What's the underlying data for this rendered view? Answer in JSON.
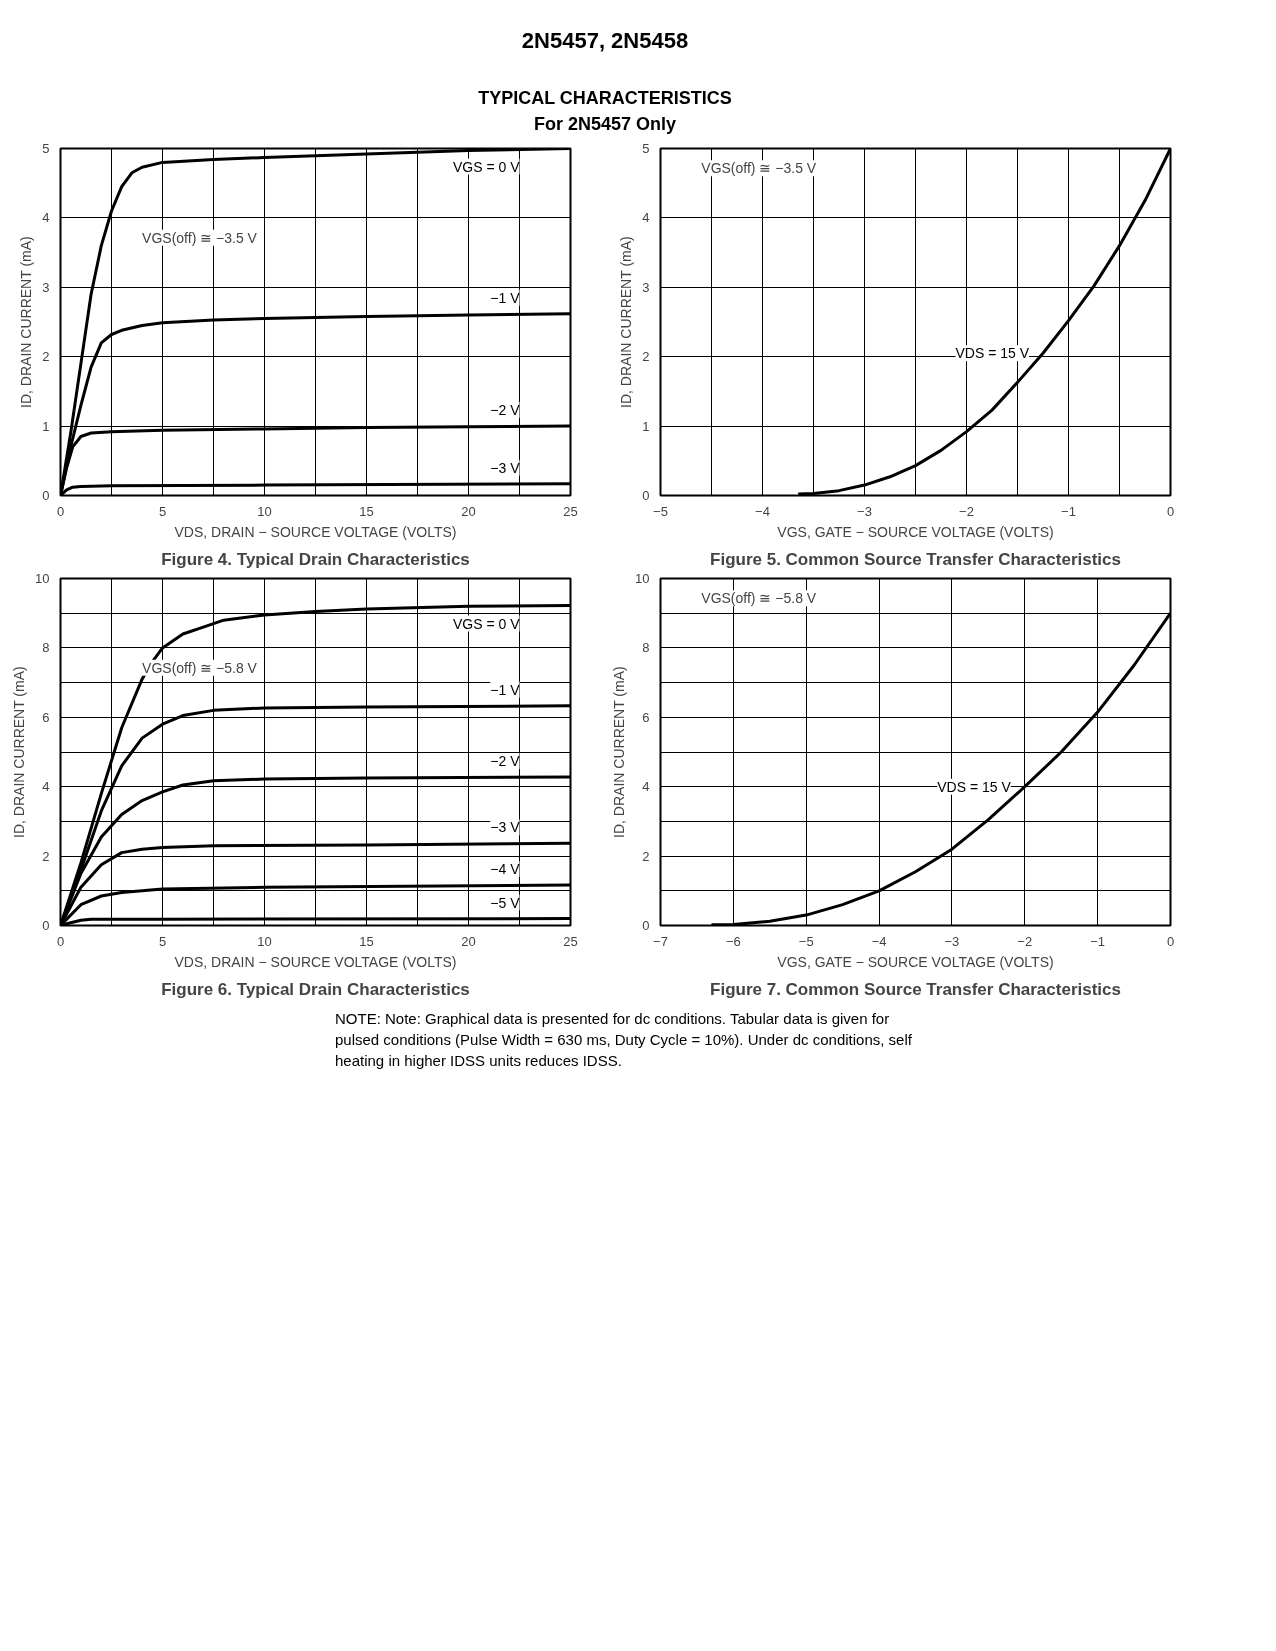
{
  "chart_data": [
    {
      "type": "line",
      "title": "Figure 4. Typical Drain Characteristics",
      "xlabel": "VDS, DRAIN − SOURCE VOLTAGE (VOLTS)",
      "ylabel": "ID, DRAIN CURRENT (mA)",
      "annotations": [
        "VGS(off) ≅ −3.5 V",
        "2N5457, 2N5458",
        "TYPICAL CHARACTERISTICS",
        "For 2N5457 Only"
      ],
      "xlim": [
        0,
        25
      ],
      "ylim": [
        0,
        5
      ],
      "xticks": [
        0,
        {
          "value": 2.5,
          "label": null
        },
        5,
        {
          "value": 7.5,
          "label": null
        },
        10,
        {
          "value": 12.5,
          "label": null
        },
        15,
        {
          "value": 17.5,
          "label": null
        },
        20,
        {
          "value": 22.5,
          "label": null
        },
        25
      ],
      "yticks": [
        0,
        1,
        2,
        3,
        4,
        5
      ],
      "grid": true,
      "series": [
        {
          "name": "VGS = 0 V",
          "color": "#000000",
          "x": [
            0,
            0.5,
            1,
            1.5,
            2,
            2.5,
            3,
            3.5,
            4,
            5,
            7.5,
            10,
            15,
            20,
            25
          ],
          "values": [
            0,
            0.9,
            1.9,
            2.9,
            3.6,
            4.1,
            4.45,
            4.65,
            4.73,
            4.8,
            4.84,
            4.87,
            4.92,
            4.97,
            5.0
          ]
        },
        {
          "name": "−1 V",
          "color": "#000000",
          "x": [
            0,
            0.5,
            1,
            1.5,
            2,
            2.5,
            3,
            4,
            5,
            7.5,
            10,
            15,
            20,
            25
          ],
          "values": [
            0,
            0.7,
            1.3,
            1.85,
            2.2,
            2.32,
            2.38,
            2.45,
            2.49,
            2.53,
            2.55,
            2.58,
            2.6,
            2.62
          ]
        },
        {
          "name": "−2 V",
          "color": "#000000",
          "x": [
            0,
            0.3,
            0.6,
            1,
            1.5,
            2.5,
            5,
            10,
            15,
            20,
            25
          ],
          "values": [
            0,
            0.4,
            0.7,
            0.85,
            0.9,
            0.92,
            0.94,
            0.96,
            0.98,
            0.99,
            1.0
          ]
        },
        {
          "name": "−3 V",
          "color": "#000000",
          "x": [
            0,
            0.3,
            0.6,
            1,
            2.5,
            10,
            25
          ],
          "values": [
            0,
            0.08,
            0.12,
            0.13,
            0.14,
            0.15,
            0.17
          ]
        }
      ]
    },
    {
      "type": "line",
      "title": "Figure 5. Common Source Transfer Characteristics",
      "xlabel": "VGS, GATE − SOURCE VOLTAGE (VOLTS)",
      "ylabel": "ID, DRAIN CURRENT (mA)",
      "annotations": [
        "VGS(off) ≅ −3.5 V"
      ],
      "xlim": [
        -5,
        0
      ],
      "ylim": [
        0,
        5
      ],
      "xticks": [
        -5,
        {
          "value": -4.5,
          "label": null
        },
        -4,
        {
          "value": -3.5,
          "label": null
        },
        -3,
        {
          "value": -2.5,
          "label": null
        },
        -2,
        {
          "value": -1.5,
          "label": null
        },
        -1,
        {
          "value": -0.5,
          "label": null
        },
        0
      ],
      "yticks": [
        0,
        1,
        2,
        3,
        4,
        5
      ],
      "grid": true,
      "series": [
        {
          "name": "VDS = 15 V",
          "color": "#000000",
          "x": [
            -3.65,
            -3.5,
            -3.25,
            -3,
            -2.75,
            -2.5,
            -2.25,
            -2,
            -1.75,
            -1.5,
            -1.25,
            -1,
            -0.75,
            -0.5,
            -0.25,
            0
          ],
          "values": [
            0.02,
            0.03,
            0.07,
            0.15,
            0.27,
            0.43,
            0.65,
            0.92,
            1.23,
            1.63,
            2.05,
            2.52,
            3.02,
            3.6,
            4.25,
            5.0
          ]
        }
      ]
    },
    {
      "type": "line",
      "title": "Figure 6. Typical Drain Characteristics",
      "xlabel": "VDS, DRAIN − SOURCE VOLTAGE (VOLTS)",
      "ylabel": "ID, DRAIN CURRENT (mA)",
      "annotations": [
        "VGS(off) ≅ −5.8 V"
      ],
      "xlim": [
        0,
        25
      ],
      "ylim": [
        0,
        10
      ],
      "xticks": [
        0,
        {
          "value": 2.5,
          "label": null
        },
        5,
        {
          "value": 7.5,
          "label": null
        },
        10,
        {
          "value": 12.5,
          "label": null
        },
        15,
        {
          "value": 17.5,
          "label": null
        },
        20,
        {
          "value": 22.5,
          "label": null
        },
        25
      ],
      "yticks": [
        0,
        {
          "value": 1,
          "label": null
        },
        2,
        {
          "value": 3,
          "label": null
        },
        4,
        {
          "value": 5,
          "label": null
        },
        6,
        {
          "value": 7,
          "label": null
        },
        8,
        {
          "value": 9,
          "label": null
        },
        10
      ],
      "grid": true,
      "series": [
        {
          "name": "VGS = 0 V",
          "color": "#000000",
          "x": [
            0,
            1,
            2,
            3,
            4,
            4.5,
            5,
            6,
            7,
            8,
            10,
            12.5,
            15,
            20,
            25
          ],
          "values": [
            0,
            1.8,
            3.8,
            5.7,
            7.1,
            7.6,
            8.0,
            8.4,
            8.6,
            8.8,
            8.95,
            9.05,
            9.12,
            9.2,
            9.22
          ]
        },
        {
          "name": "−1 V",
          "color": "#000000",
          "x": [
            0,
            1,
            2,
            3,
            4,
            5,
            6,
            7.5,
            10,
            15,
            25
          ],
          "values": [
            0,
            1.6,
            3.3,
            4.6,
            5.4,
            5.8,
            6.05,
            6.2,
            6.27,
            6.3,
            6.33
          ]
        },
        {
          "name": "−2 V",
          "color": "#000000",
          "x": [
            0,
            1,
            2,
            3,
            4,
            5,
            6,
            7.5,
            10,
            15,
            25
          ],
          "values": [
            0,
            1.5,
            2.55,
            3.2,
            3.6,
            3.85,
            4.05,
            4.17,
            4.22,
            4.25,
            4.28
          ]
        },
        {
          "name": "−3 V",
          "color": "#000000",
          "x": [
            0,
            1,
            2,
            3,
            4,
            5,
            7.5,
            15,
            25
          ],
          "values": [
            0,
            1.1,
            1.75,
            2.1,
            2.2,
            2.25,
            2.3,
            2.32,
            2.37
          ]
        },
        {
          "name": "−4 V",
          "color": "#000000",
          "x": [
            0,
            1,
            2,
            3,
            5,
            10,
            25
          ],
          "values": [
            0,
            0.6,
            0.85,
            0.95,
            1.05,
            1.1,
            1.17
          ]
        },
        {
          "name": "−5 V",
          "color": "#000000",
          "x": [
            0,
            0.5,
            1,
            1.5,
            5,
            25
          ],
          "values": [
            0,
            0.08,
            0.15,
            0.18,
            0.18,
            0.2
          ]
        }
      ]
    },
    {
      "type": "line",
      "title": "Figure 7. Common Source Transfer Characteristics",
      "xlabel": "VGS, GATE − SOURCE VOLTAGE (VOLTS)",
      "ylabel": "ID, DRAIN CURRENT (mA)",
      "annotations": [
        "VGS(off) ≅ −5.8 V",
        "NOTE: Note: Graphical data is presented for dc conditions. Tabular data is given for pulsed conditions (Pulse Width = 630 ms, Duty Cycle = 10%). Under dc conditions, self heating in higher IDSS units reduces IDSS."
      ],
      "xlim": [
        -7,
        0
      ],
      "ylim": [
        0,
        10
      ],
      "xticks": [
        -7,
        -6,
        -5,
        -4,
        -3,
        -2,
        -1,
        0
      ],
      "yticks": [
        0,
        {
          "value": 1,
          "label": null
        },
        2,
        {
          "value": 3,
          "label": null
        },
        4,
        {
          "value": 5,
          "label": null
        },
        6,
        {
          "value": 7,
          "label": null
        },
        8,
        {
          "value": 9,
          "label": null
        },
        10
      ],
      "grid": true,
      "series": [
        {
          "name": "VDS = 15 V",
          "color": "#000000",
          "x": [
            -6.3,
            -6,
            -5.5,
            -5,
            -4.5,
            -4,
            -3.5,
            -3,
            -2.5,
            -2,
            -1.5,
            -1,
            -0.5,
            0
          ],
          "values": [
            0.02,
            0.03,
            0.12,
            0.3,
            0.6,
            1.0,
            1.55,
            2.2,
            3.05,
            4.0,
            5.0,
            6.15,
            7.5,
            9.0
          ]
        }
      ]
    }
  ]
}
